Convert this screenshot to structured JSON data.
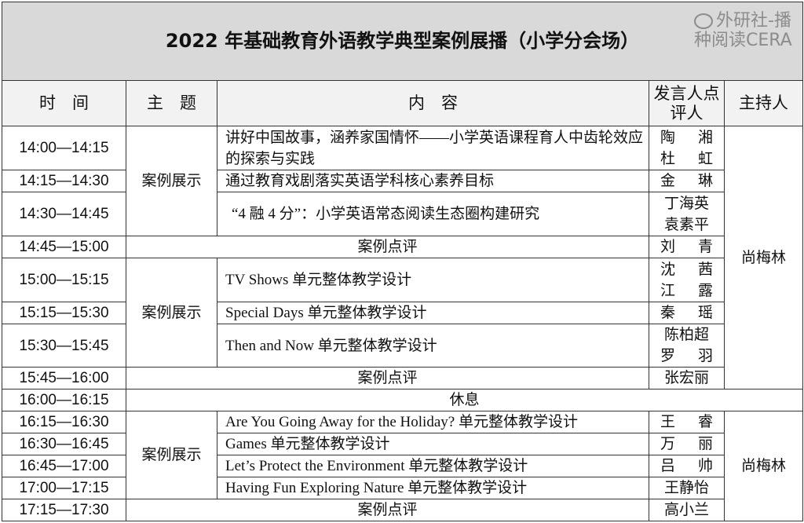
{
  "title": "2022 年基础教育外语教学典型案例展播（小学分会场）",
  "headers": {
    "time": "时　间",
    "topic": "主　题",
    "content": "内　容",
    "speaker": "发言人点评人",
    "host": "主持人"
  },
  "rows": [
    {
      "time": "14:00—14:15",
      "content": "讲好中国故事，涵养家国情怀——小学英语课程育人中齿轮效应的探索与实践",
      "speakers": [
        "陶　湘",
        "杜　虹"
      ]
    },
    {
      "time": "14:15—14:30",
      "content": "通过教育戏剧落实英语学科核心素养目标",
      "speakers": [
        "金　琳"
      ]
    },
    {
      "time": "14:30—14:45",
      "content": "“4 融 4 分”：小学英语常态阅读生态圈构建研究",
      "speakers": [
        "丁海英",
        "袁素平"
      ]
    },
    {
      "time": "14:45—15:00",
      "content": "案例点评",
      "speakers": [
        "刘　青"
      ]
    },
    {
      "time": "15:00—15:15",
      "content": "TV Shows 单元整体教学设计",
      "speakers": [
        "沈　茜",
        "江　露"
      ]
    },
    {
      "time": "15:15—15:30",
      "content": "Special Days 单元整体教学设计",
      "speakers": [
        "秦　瑶"
      ]
    },
    {
      "time": "15:30—15:45",
      "content": "Then and Now 单元整体教学设计",
      "speakers": [
        "陈柏超",
        "罗　羽"
      ]
    },
    {
      "time": "15:45—16:00",
      "content": "案例点评",
      "speakers": [
        "张宏丽"
      ]
    },
    {
      "time": "16:00—16:15",
      "content": "休息"
    },
    {
      "time": "16:15—16:30",
      "content": "Are You Going Away for the Holiday? 单元整体教学设计",
      "speakers": [
        "王　睿"
      ]
    },
    {
      "time": "16:30—16:45",
      "content": "Games 单元整体教学设计",
      "speakers": [
        "万　丽"
      ]
    },
    {
      "time": "16:45—17:00",
      "content": "Let’s Protect the Environment 单元整体教学设计",
      "speakers": [
        "吕　帅"
      ]
    },
    {
      "time": "17:00—17:15",
      "content": "Having Fun Exploring Nature 单元整体教学设计",
      "speakers": [
        "王静怡"
      ]
    },
    {
      "time": "17:15—17:30",
      "content": "案例点评",
      "speakers": [
        "高小兰"
      ]
    }
  ],
  "topics": {
    "showcase": "案例展示"
  },
  "hosts": [
    "尚梅林",
    "尚梅林"
  ],
  "watermark": "外研社-播种阅读CERA"
}
